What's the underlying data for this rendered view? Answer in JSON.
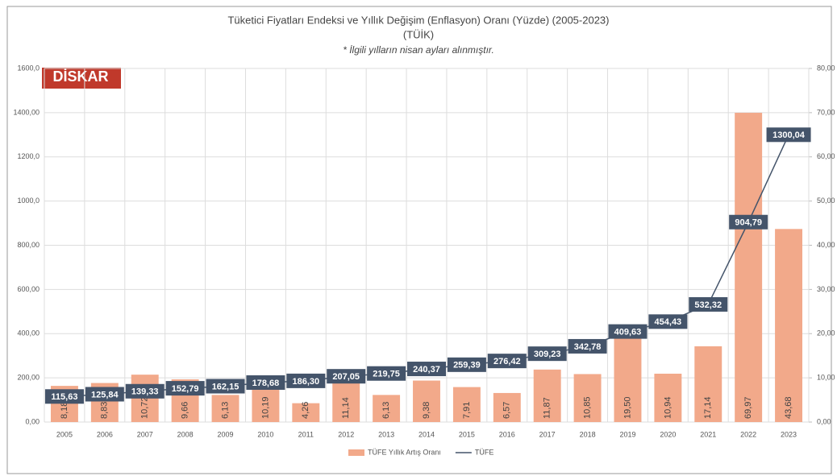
{
  "chart_data": {
    "type": "combo",
    "title": "Tüketici Fiyatları Endeksi ve Yıllık Değişim (Enflasyon) Oranı (Yüzde) (2005-2023)",
    "subtitle": "(TÜİK)",
    "note": "* İlgili yılların nisan ayları alınmıştır.",
    "logo": "DİSKAR",
    "categories": [
      "2005",
      "2006",
      "2007",
      "2008",
      "2009",
      "2010",
      "2011",
      "2012",
      "2013",
      "2014",
      "2015",
      "2016",
      "2017",
      "2018",
      "2019",
      "2020",
      "2021",
      "2022",
      "2023"
    ],
    "series": [
      {
        "name": "TÜFE Yıllık Artış Oranı",
        "type": "bar",
        "axis": "y2",
        "color": "#f2a98a",
        "values": [
          8.18,
          8.83,
          10.72,
          9.66,
          6.13,
          10.19,
          4.26,
          11.14,
          6.13,
          9.38,
          7.91,
          6.57,
          11.87,
          10.85,
          19.5,
          10.94,
          17.14,
          69.97,
          43.68
        ],
        "value_labels": [
          "8,18",
          "8,83",
          "10,72",
          "9,66",
          "6,13",
          "10,19",
          "4,26",
          "11,14",
          "6,13",
          "9,38",
          "7,91",
          "6,57",
          "11,87",
          "10,85",
          "19,50",
          "10,94",
          "17,14",
          "69,97",
          "43,68"
        ]
      },
      {
        "name": "TÜFE",
        "type": "line",
        "axis": "y",
        "color": "#44546a",
        "values": [
          115.63,
          125.84,
          139.33,
          152.79,
          162.15,
          178.68,
          186.3,
          207.05,
          219.75,
          240.37,
          259.39,
          276.42,
          309.23,
          342.78,
          409.63,
          454.43,
          532.32,
          904.79,
          1300.04
        ],
        "value_labels": [
          "115,63",
          "125,84",
          "139,33",
          "152,79",
          "162,15",
          "178,68",
          "186,30",
          "207,05",
          "219,75",
          "240,37",
          "259,39",
          "276,42",
          "309,23",
          "342,78",
          "409,63",
          "454,43",
          "532,32",
          "904,79",
          "1300,04"
        ]
      }
    ],
    "ylim": [
      0,
      1600
    ],
    "yticks": [
      {
        "value": 0,
        "label": "0,00"
      },
      {
        "value": 200,
        "label": "200,00"
      },
      {
        "value": 400,
        "label": "400,00"
      },
      {
        "value": 600,
        "label": "600,00"
      },
      {
        "value": 800,
        "label": "800,00"
      },
      {
        "value": 1000,
        "label": "1000,0"
      },
      {
        "value": 1200,
        "label": "1200,0"
      },
      {
        "value": 1400,
        "label": "1400,00"
      },
      {
        "value": 1600,
        "label": "1600,0"
      }
    ],
    "y2lim": [
      0,
      80
    ],
    "y2ticks": [
      {
        "value": 0,
        "label": "0,00"
      },
      {
        "value": 10,
        "label": "10,00"
      },
      {
        "value": 20,
        "label": "20,00"
      },
      {
        "value": 30,
        "label": "30,00"
      },
      {
        "value": 40,
        "label": "40,00"
      },
      {
        "value": 50,
        "label": "50,00"
      },
      {
        "value": 60,
        "label": "60,00"
      },
      {
        "value": 70,
        "label": "70,00"
      },
      {
        "value": 80,
        "label": "80,00"
      }
    ],
    "grid": true,
    "legend": "bottom"
  }
}
